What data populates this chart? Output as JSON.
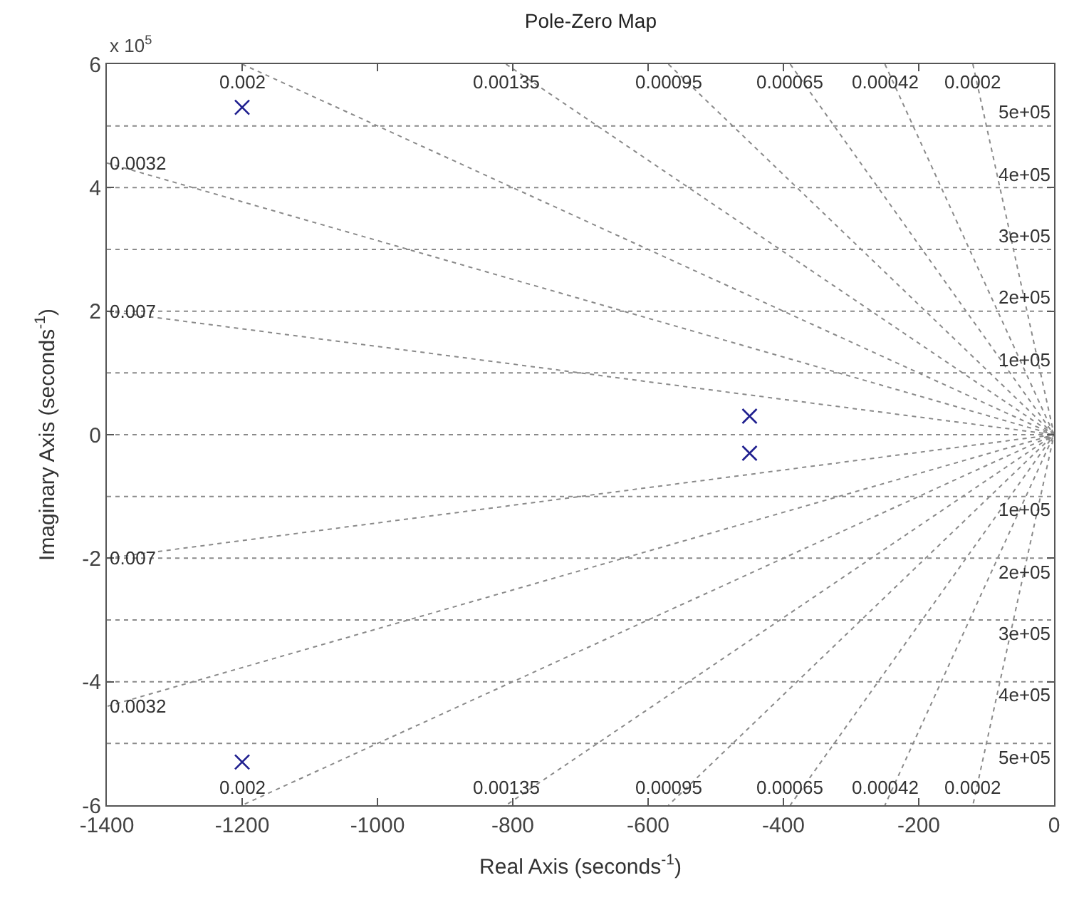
{
  "chart_data": {
    "type": "scatter",
    "title": "Pole-Zero Map",
    "xlabel": "Real Axis (seconds$^{-1}$)",
    "ylabel": "Imaginary Axis (seconds$^{-1}$)",
    "xlim": [
      -1400,
      0
    ],
    "xticks": [
      -1400,
      -1200,
      -1000,
      -800,
      -600,
      -400,
      -200,
      0
    ],
    "ylim": [
      -6,
      6
    ],
    "yticks": [
      -6,
      -4,
      -2,
      0,
      2,
      4,
      6
    ],
    "grid": false,
    "series": [
      {
        "marker": "cross",
        "color": "#1f1f8f",
        "x": [
          -1200,
          -1200,
          -450,
          -450
        ],
        "values": [
          5.3,
          -5.3,
          0.3,
          -0.3
        ]
      },
      {
        "type": "line",
        "marker": "none",
        "line_style": "dotted",
        "color": "#8a8a8a",
        "x": [
          -1200,
          0,
          -1200
        ],
        "values": [
          6,
          0,
          -6
        ]
      },
      {
        "type": "line",
        "marker": "none",
        "line_style": "dotted",
        "color": "#8a8a8a",
        "x": [
          -1400,
          0,
          -1400
        ],
        "values": [
          4.4,
          0,
          -4.4
        ]
      },
      {
        "type": "line",
        "marker": "none",
        "line_style": "dotted",
        "color": "#8a8a8a",
        "x": [
          -1400,
          0,
          -1400
        ],
        "values": [
          2,
          0,
          -2
        ]
      },
      {
        "type": "line",
        "marker": "none",
        "line_style": "dotted",
        "color": "#8a8a8a",
        "x": [
          -810,
          0,
          -810
        ],
        "values": [
          6,
          0,
          -6
        ]
      },
      {
        "type": "line",
        "marker": "none",
        "line_style": "dotted",
        "color": "#8a8a8a",
        "x": [
          -570,
          0,
          -570
        ],
        "values": [
          6,
          0,
          -6
        ]
      },
      {
        "type": "line",
        "marker": "none",
        "line_style": "dotted",
        "color": "#8a8a8a",
        "x": [
          -390,
          0,
          -390
        ],
        "values": [
          6,
          0,
          -6
        ]
      },
      {
        "type": "line",
        "marker": "none",
        "line_style": "dotted",
        "color": "#8a8a8a",
        "x": [
          -250,
          0,
          -250
        ],
        "values": [
          6,
          0,
          -6
        ]
      },
      {
        "type": "line",
        "marker": "none",
        "line_style": "dotted",
        "color": "#8a8a8a",
        "x": [
          -120,
          0,
          -120
        ],
        "values": [
          6,
          0,
          -6
        ]
      }
    ],
    "ref_lines": [
      {
        "axis": "y",
        "value": 5,
        "label": "5e+05",
        "color": "#8a8a8a",
        "line_style": "dotted"
      },
      {
        "axis": "y",
        "value": 4,
        "label": "4e+05",
        "color": "#8a8a8a",
        "line_style": "dotted"
      },
      {
        "axis": "y",
        "value": 3,
        "label": "3e+05",
        "color": "#8a8a8a",
        "line_style": "dotted"
      },
      {
        "axis": "y",
        "value": 2,
        "label": "2e+05",
        "color": "#8a8a8a",
        "line_style": "dotted"
      },
      {
        "axis": "y",
        "value": 1,
        "label": "1e+05",
        "color": "#8a8a8a",
        "line_style": "dotted"
      },
      {
        "axis": "y",
        "value": 0,
        "label": null,
        "color": "#8a8a8a",
        "line_style": "dotted"
      },
      {
        "axis": "y",
        "value": -1,
        "label": "1e+05",
        "color": "#8a8a8a",
        "line_style": "dotted"
      },
      {
        "axis": "y",
        "value": -2,
        "label": "2e+05",
        "color": "#8a8a8a",
        "line_style": "dotted"
      },
      {
        "axis": "y",
        "value": -3,
        "label": "3e+05",
        "color": "#8a8a8a",
        "line_style": "dotted"
      },
      {
        "axis": "y",
        "value": -4,
        "label": "4e+05",
        "color": "#8a8a8a",
        "line_style": "dotted"
      },
      {
        "axis": "y",
        "value": -5,
        "label": "5e+05",
        "color": "#8a8a8a",
        "line_style": "dotted"
      }
    ],
    "annotations": [
      "x 10$^{5}$",
      {
        "text": "0.002",
        "x": -1200,
        "y": 6
      },
      {
        "text": "0.00135",
        "x": -810,
        "y": 6
      },
      {
        "text": "0.00095",
        "x": -570,
        "y": 6
      },
      {
        "text": "0.00065",
        "x": -390,
        "y": 6
      },
      {
        "text": "0.00042",
        "x": -250,
        "y": 6
      },
      {
        "text": "0.0002",
        "x": -120,
        "y": 6
      },
      {
        "text": "0.0032",
        "x": -1400,
        "y": 4.4
      },
      {
        "text": "0.007",
        "x": -1400,
        "y": 2
      },
      {
        "text": "0.007",
        "x": -1400,
        "y": -2
      },
      {
        "text": "0.0032",
        "x": -1400,
        "y": -4.4
      },
      {
        "text": "0.002",
        "x": -1200,
        "y": -6
      },
      {
        "text": "0.00135",
        "x": -810,
        "y": -6
      },
      {
        "text": "0.00095",
        "x": -570,
        "y": -6
      },
      {
        "text": "0.00065",
        "x": -390,
        "y": -6
      },
      {
        "text": "0.00042",
        "x": -250,
        "y": -6
      },
      {
        "text": "0.0002",
        "x": -120,
        "y": -6
      }
    ]
  }
}
